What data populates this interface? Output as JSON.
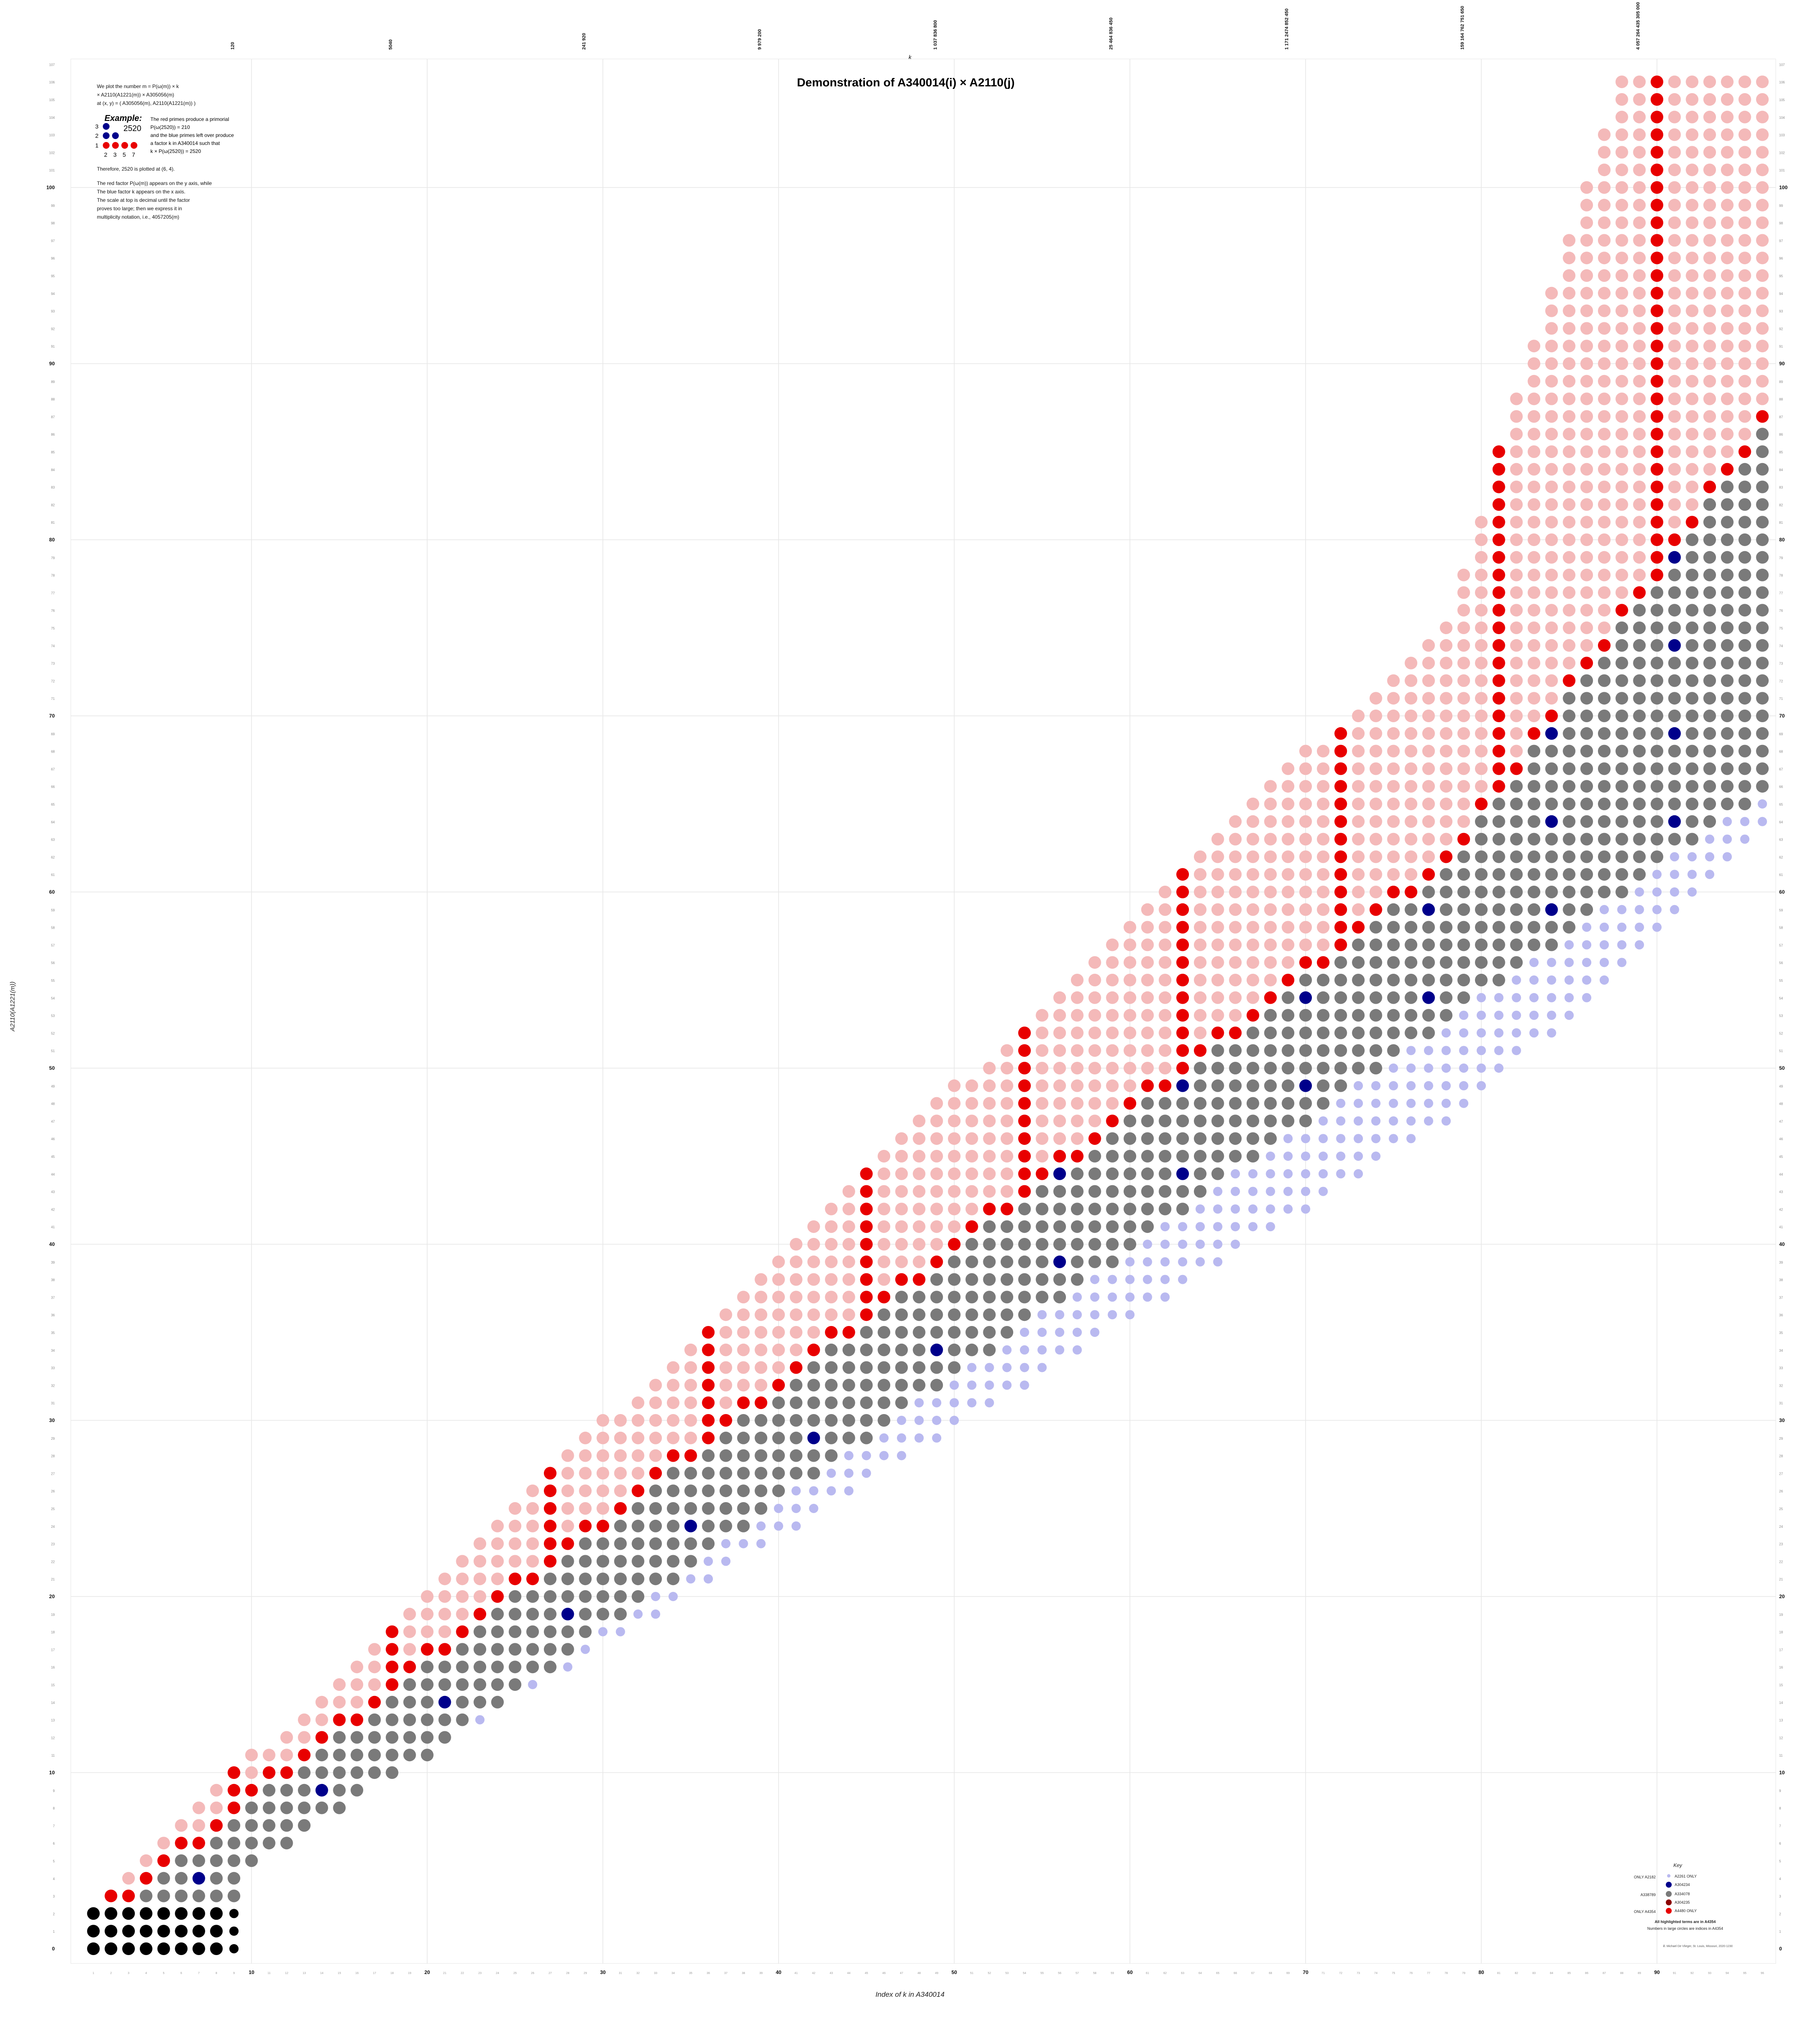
{
  "chart_data": {
    "type": "scatter",
    "title": "Demonstration of A340014(i) × A2110(j)",
    "xlabel": "Index of k in A340014",
    "ylabel": "A2110(A1221(m))",
    "top_axis_label": "k",
    "xlim": [
      0,
      96
    ],
    "ylim": [
      0,
      107
    ],
    "x_major_ticks": [
      10,
      20,
      30,
      40,
      50,
      60,
      70,
      80,
      90
    ],
    "y_major_ticks": [
      10,
      20,
      30,
      40,
      50,
      60,
      70,
      80,
      90,
      100
    ],
    "grid": true,
    "legend_position": "bottom-right",
    "top_ticks_highlighted": [
      "120",
      "5040",
      "241 920",
      "9 979 200",
      "1 037 836 800",
      "25 464 836 450",
      "1 171 2474 852 450",
      "159 164 762 751 650",
      "4 057 264 435 305 000"
    ],
    "annotation": {
      "paragraphs": [
        "We plot the number m = P(ω(m)) × k\n× A2110(A1221(m)) × A305056(m)\nat (x, y) = ( A305056(m), A2110(A1221(m)) )",
        "Therefore, 2520 is plotted at (6, 4).",
        "The red factor P(ω(m)) appears on the y axis, while\nThe blue factor k appears on the x axis.\nThe scale at top is decimal until the factor\nproves too large; then we express it in\nmultiplicity notation, i.e., 4057205(m)"
      ],
      "example_heading": "Example:",
      "example_number": "2520",
      "example_text": "The red primes produce a primorial\nP(ω(2520)) = 210\nand the blue primes left over produce\na factor k in A340014 such that\nk × P(ω(2520)) = 2520",
      "example_rows": [
        "3",
        "2",
        "1"
      ],
      "example_cols": [
        "2",
        "3",
        "5",
        "7"
      ]
    },
    "key": {
      "title": "Key",
      "left_labels": [
        "ONLY A2182",
        "A338789",
        "ONLY A4354"
      ],
      "right_labels": [
        "A2261 ONLY",
        "A304234",
        "A334078",
        "A304235",
        "A4480 ONLY"
      ],
      "note_bold": "All highlighted terms are in A4354",
      "note": "Numbers in large circles are indices in A4354"
    },
    "credit": "ill. Michael De Vlieger, St. Louis, Missouri, 2020-1230",
    "colors": {
      "pink": "#f4b9b9",
      "red": "#e80000",
      "darkred": "#8b0000",
      "gray": "#7a7a7a",
      "black": "#000000",
      "navy": "#00008b",
      "blue": "#0000ee",
      "lavender": "#b9b9f0",
      "grid": "#e6e6e6"
    }
  }
}
